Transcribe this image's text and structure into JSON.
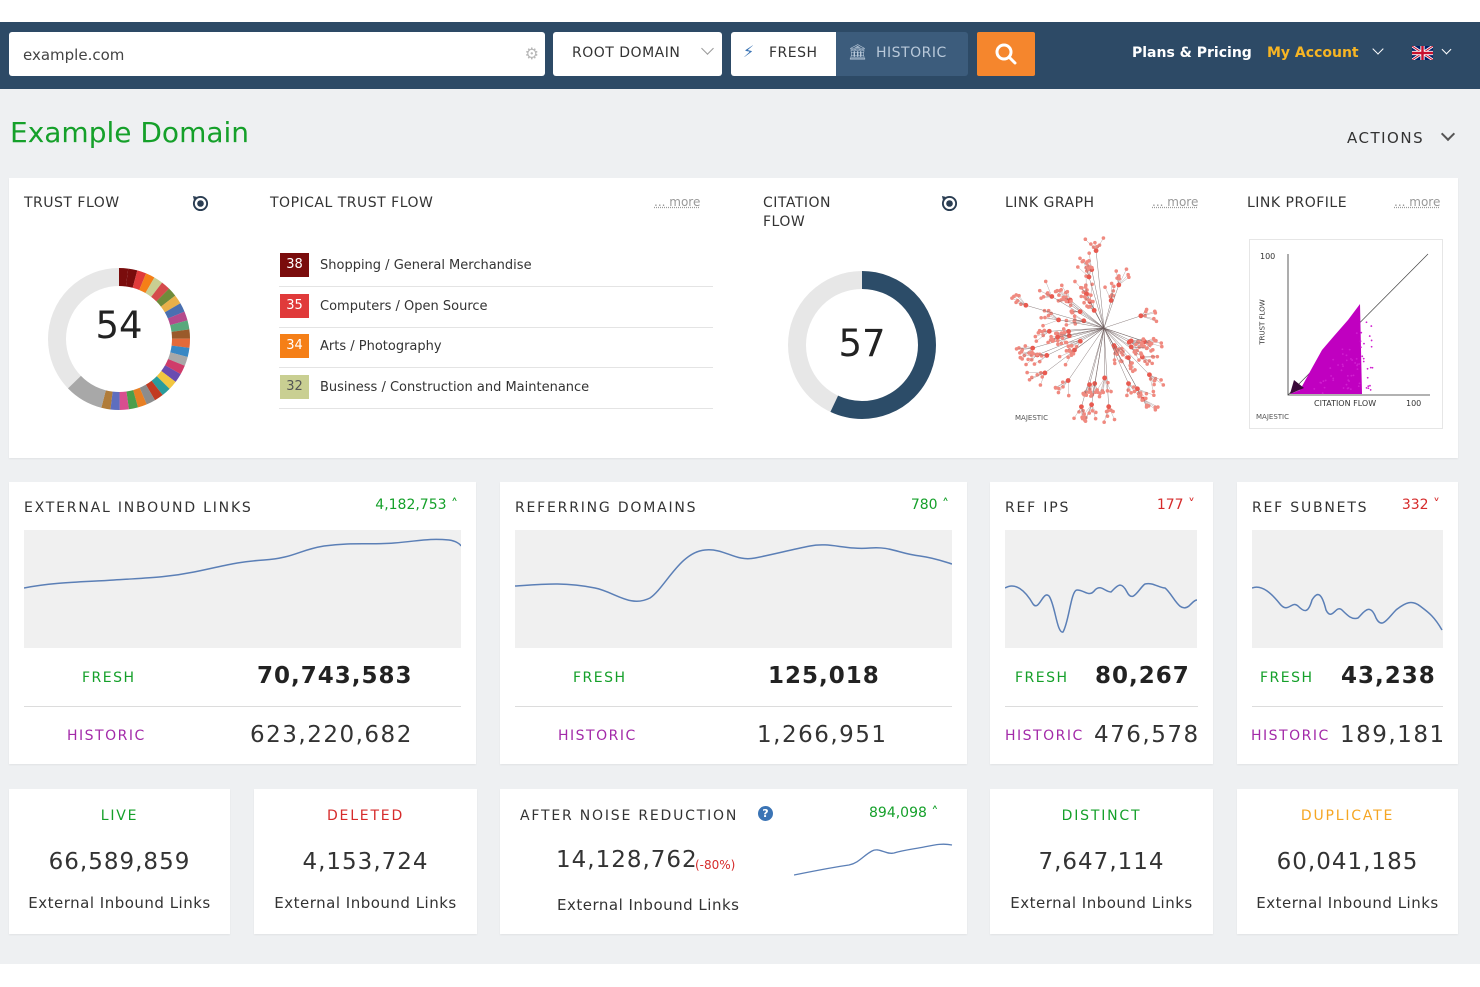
{
  "header": {
    "search": {
      "value": "example.com",
      "placeholder": ""
    },
    "scope_select": "ROOT DOMAIN",
    "fresh_label": "FRESH",
    "historic_label": "HISTORIC",
    "plans_label": "Plans & Pricing",
    "account_label": "My Account",
    "colors": {
      "bar": "#2d4a66",
      "search_button": "#f5862d",
      "account": "#f7b523"
    }
  },
  "page": {
    "title": "Example Domain",
    "actions_label": "ACTIONS"
  },
  "trust_flow": {
    "label": "TRUST FLOW",
    "value": "54"
  },
  "topical_trust_flow": {
    "label": "TOPICAL TRUST FLOW",
    "more": "... more",
    "items": [
      {
        "score": "38",
        "topic": "Shopping / General Merchandise",
        "color": "#7a0c0c"
      },
      {
        "score": "35",
        "topic": "Computers / Open Source",
        "color": "#e03a3a"
      },
      {
        "score": "34",
        "topic": "Arts / Photography",
        "color": "#f57f17"
      },
      {
        "score": "32",
        "topic": "Business / Construction and Maintenance",
        "color": "#c9cf92"
      }
    ]
  },
  "citation_flow": {
    "label_line1": "CITATION",
    "label_line2": "FLOW",
    "value": "57"
  },
  "link_graph": {
    "label": "LINK GRAPH",
    "more": "... more",
    "watermark": "MAJESTIC"
  },
  "link_profile": {
    "label": "LINK PROFILE",
    "more": "... more",
    "y_axis": "TRUST FLOW",
    "x_axis": "CITATION FLOW",
    "y_max": "100",
    "x_max": "100",
    "watermark": "MAJESTIC"
  },
  "stats": [
    {
      "title": "EXTERNAL INBOUND LINKS",
      "delta": "4,182,753",
      "delta_dir": "up",
      "fresh_label": "FRESH",
      "fresh": "70,743,583",
      "historic_label": "HISTORIC",
      "historic": "623,220,682"
    },
    {
      "title": "REFERRING DOMAINS",
      "delta": "780",
      "delta_dir": "up",
      "fresh_label": "FRESH",
      "fresh": "125,018",
      "historic_label": "HISTORIC",
      "historic": "1,266,951"
    },
    {
      "title": "REF IPS",
      "delta": "177",
      "delta_dir": "down",
      "fresh_label": "FRESH",
      "fresh": "80,267",
      "historic_label": "HISTORIC",
      "historic": "476,578"
    },
    {
      "title": "REF SUBNETS",
      "delta": "332",
      "delta_dir": "down",
      "fresh_label": "FRESH",
      "fresh": "43,238",
      "historic_label": "HISTORIC",
      "historic": "189,181"
    }
  ],
  "bottom": {
    "live": {
      "title": "LIVE",
      "value": "66,589,859",
      "sub": "External Inbound Links"
    },
    "deleted": {
      "title": "DELETED",
      "value": "4,153,724",
      "sub": "External Inbound Links"
    },
    "noise": {
      "title": "AFTER NOISE REDUCTION",
      "delta": "894,098",
      "value": "14,128,762",
      "pct": "(-80%)",
      "sub": "External Inbound Links"
    },
    "distinct": {
      "title": "DISTINCT",
      "value": "7,647,114",
      "sub": "External Inbound Links"
    },
    "duplicate": {
      "title": "DUPLICATE",
      "value": "60,041,185",
      "sub": "External Inbound Links"
    }
  }
}
